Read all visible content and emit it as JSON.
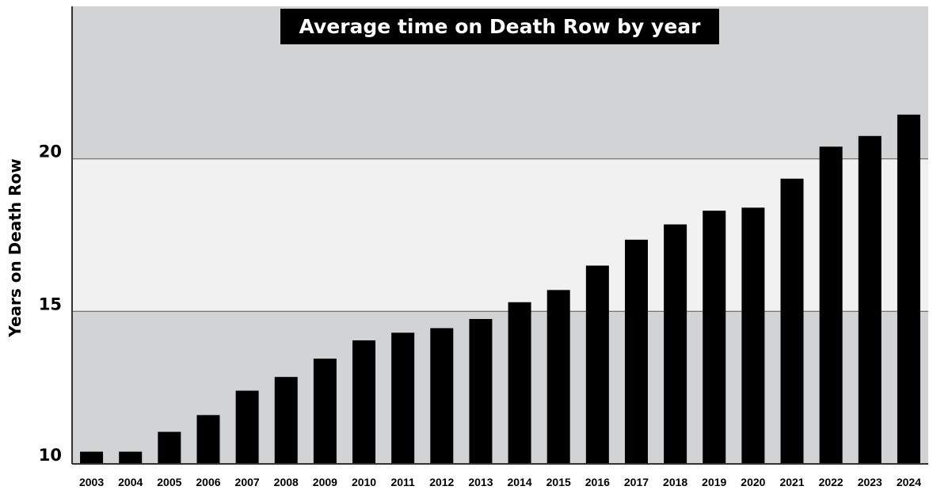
{
  "chart_data": {
    "type": "bar",
    "title": "Average time on Death Row by year",
    "ylabel": "Years on Death Row",
    "xlabel": "",
    "ylim": [
      10,
      25
    ],
    "yticks": [
      10,
      15,
      20
    ],
    "categories": [
      "2003",
      "2004",
      "2005",
      "2006",
      "2007",
      "2008",
      "2009",
      "2010",
      "2011",
      "2012",
      "2013",
      "2014",
      "2015",
      "2016",
      "2017",
      "2018",
      "2019",
      "2020",
      "2021",
      "2022",
      "2023",
      "2024"
    ],
    "values": [
      10.4,
      10.4,
      11.05,
      11.6,
      12.4,
      12.85,
      13.45,
      14.05,
      14.3,
      14.45,
      14.75,
      15.3,
      15.7,
      16.5,
      17.35,
      17.85,
      18.3,
      18.4,
      19.35,
      20.4,
      20.75,
      21.45
    ],
    "grid": false,
    "bands": [
      {
        "from": 10,
        "to": 15,
        "color": "#d2d3d5"
      },
      {
        "from": 15,
        "to": 20,
        "color": "#f1f1f1"
      },
      {
        "from": 20,
        "to": 25,
        "color": "#d2d3d5"
      }
    ],
    "colors": {
      "bar": "#000000",
      "axis": "#333333",
      "band_line": "#666666"
    }
  }
}
